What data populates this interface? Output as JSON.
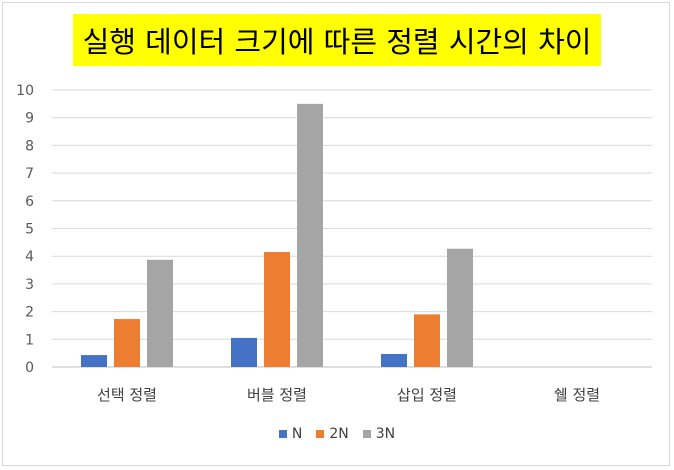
{
  "chart_data": {
    "type": "bar",
    "title": "실행 데이터 크기에 따른 정렬 시간의 차이",
    "categories": [
      "선택 정렬",
      "버블 정렬",
      "삽입 정렬",
      "쉘 정렬"
    ],
    "series": [
      {
        "name": "N",
        "color": "#4472c4",
        "values": [
          0.43,
          1.05,
          0.47,
          null
        ]
      },
      {
        "name": "2N",
        "color": "#ed7d31",
        "values": [
          1.73,
          4.15,
          1.9,
          null
        ]
      },
      {
        "name": "3N",
        "color": "#a5a5a5",
        "values": [
          3.87,
          9.5,
          4.27,
          null
        ]
      }
    ],
    "ylim": [
      0,
      10
    ],
    "yticks": [
      "0",
      "1",
      "2",
      "3",
      "4",
      "5",
      "6",
      "7",
      "8",
      "9",
      "10"
    ],
    "grid": true,
    "legend_position": "bottom"
  }
}
